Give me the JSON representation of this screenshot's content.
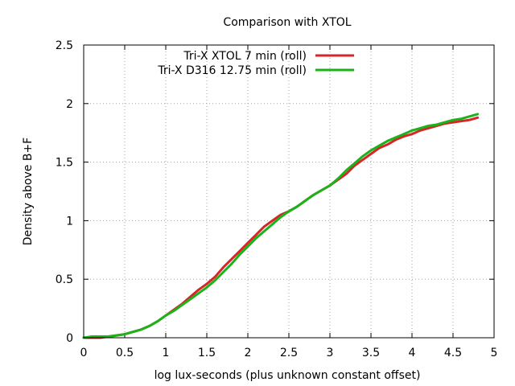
{
  "chart_data": {
    "type": "line",
    "title": "Comparison with XTOL",
    "xlabel": "log lux-seconds (plus unknown constant offset)",
    "ylabel": "Density above B+F",
    "xlim": [
      0,
      5
    ],
    "ylim": [
      0,
      2.5
    ],
    "xticks": [
      "0",
      "0.5",
      "1",
      "1.5",
      "2",
      "2.5",
      "3",
      "3.5",
      "4",
      "4.5",
      "5"
    ],
    "yticks": [
      "0",
      "0.5",
      "1",
      "1.5",
      "2",
      "2.5"
    ],
    "grid": true,
    "legend_position": "top",
    "series": [
      {
        "name": "Tri-X XTOL 7 min (roll)",
        "color": "#d62728",
        "x": [
          0,
          0.1,
          0.2,
          0.3,
          0.4,
          0.5,
          0.6,
          0.7,
          0.8,
          0.9,
          1.0,
          1.1,
          1.2,
          1.3,
          1.4,
          1.5,
          1.6,
          1.7,
          1.8,
          1.9,
          2.0,
          2.1,
          2.2,
          2.3,
          2.4,
          2.5,
          2.6,
          2.7,
          2.8,
          2.9,
          3.0,
          3.1,
          3.2,
          3.3,
          3.4,
          3.5,
          3.6,
          3.7,
          3.8,
          3.9,
          4.0,
          4.1,
          4.2,
          4.3,
          4.4,
          4.5,
          4.6,
          4.7,
          4.8
        ],
        "y": [
          0,
          0,
          0,
          0.01,
          0.02,
          0.03,
          0.05,
          0.07,
          0.1,
          0.14,
          0.19,
          0.24,
          0.29,
          0.35,
          0.41,
          0.46,
          0.52,
          0.6,
          0.67,
          0.74,
          0.81,
          0.88,
          0.95,
          1.0,
          1.05,
          1.08,
          1.12,
          1.17,
          1.22,
          1.26,
          1.3,
          1.35,
          1.4,
          1.47,
          1.52,
          1.57,
          1.62,
          1.65,
          1.69,
          1.72,
          1.74,
          1.77,
          1.79,
          1.81,
          1.83,
          1.84,
          1.85,
          1.86,
          1.88
        ]
      },
      {
        "name": "Tri-X D316 12.75 min (roll)",
        "color": "#1ab31a",
        "x": [
          0,
          0.1,
          0.2,
          0.3,
          0.4,
          0.5,
          0.6,
          0.7,
          0.8,
          0.9,
          1.0,
          1.1,
          1.2,
          1.3,
          1.4,
          1.5,
          1.6,
          1.7,
          1.8,
          1.9,
          2.0,
          2.1,
          2.2,
          2.3,
          2.4,
          2.5,
          2.6,
          2.7,
          2.8,
          2.9,
          3.0,
          3.1,
          3.2,
          3.3,
          3.4,
          3.5,
          3.6,
          3.7,
          3.8,
          3.9,
          4.0,
          4.1,
          4.2,
          4.3,
          4.4,
          4.5,
          4.6,
          4.7,
          4.8
        ],
        "y": [
          0,
          0.01,
          0.01,
          0.01,
          0.02,
          0.03,
          0.05,
          0.07,
          0.1,
          0.14,
          0.19,
          0.23,
          0.28,
          0.33,
          0.38,
          0.43,
          0.49,
          0.56,
          0.63,
          0.71,
          0.78,
          0.85,
          0.91,
          0.97,
          1.03,
          1.08,
          1.12,
          1.17,
          1.22,
          1.26,
          1.3,
          1.36,
          1.43,
          1.49,
          1.55,
          1.6,
          1.64,
          1.68,
          1.71,
          1.74,
          1.77,
          1.79,
          1.81,
          1.82,
          1.84,
          1.86,
          1.87,
          1.89,
          1.91
        ]
      }
    ]
  }
}
